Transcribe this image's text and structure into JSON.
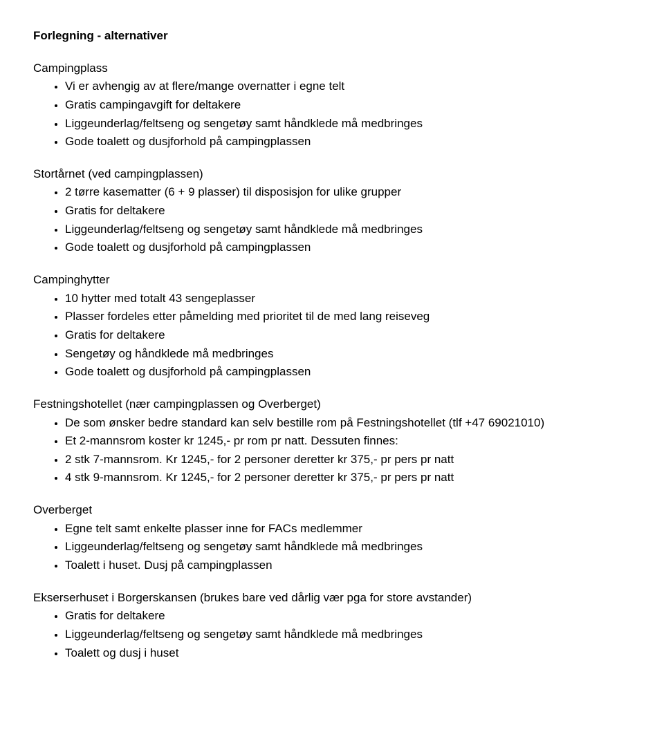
{
  "title": "Forlegning - alternativer",
  "sections": [
    {
      "heading": "Campingplass",
      "items": [
        "Vi er avhengig av at flere/mange overnatter i egne telt",
        "Gratis campingavgift for deltakere",
        "Liggeunderlag/feltseng og sengetøy samt håndklede må medbringes",
        "Gode toalett og dusjforhold på campingplassen"
      ]
    },
    {
      "heading": "Stortårnet (ved campingplassen)",
      "items": [
        "2 tørre kasematter (6 + 9 plasser) til disposisjon for ulike grupper",
        "Gratis for deltakere",
        "Liggeunderlag/feltseng og sengetøy samt håndklede må medbringes",
        "Gode toalett og dusjforhold på campingplassen"
      ]
    },
    {
      "heading": "Campinghytter",
      "items": [
        "10 hytter med totalt 43 sengeplasser",
        "Plasser fordeles etter påmelding med prioritet til de med lang reiseveg",
        "Gratis for deltakere",
        "Sengetøy og håndklede må medbringes",
        "Gode toalett og dusjforhold på campingplassen"
      ]
    },
    {
      "heading": "Festningshotellet (nær campingplassen og Overberget)",
      "items": [
        "De som ønsker bedre standard kan selv bestille rom på Festningshotellet (tlf +47 69021010)",
        "Et 2-mannsrom koster kr 1245,- pr rom pr natt. Dessuten finnes:",
        "2 stk 7-mannsrom. Kr 1245,- for 2 personer deretter kr 375,- pr pers pr natt",
        "4 stk 9-mannsrom. Kr 1245,- for 2 personer deretter kr 375,- pr pers pr natt"
      ]
    },
    {
      "heading": "Overberget",
      "items": [
        "Egne telt samt enkelte plasser inne for FACs medlemmer",
        "Liggeunderlag/feltseng og sengetøy samt håndklede må medbringes",
        "Toalett i huset. Dusj på campingplassen"
      ]
    },
    {
      "heading": "Ekserserhuset i Borgerskansen (brukes bare ved dårlig vær pga for store avstander)",
      "items": [
        "Gratis for deltakere",
        "Liggeunderlag/feltseng og sengetøy samt håndklede må medbringes",
        "Toalett og dusj i huset"
      ]
    }
  ]
}
